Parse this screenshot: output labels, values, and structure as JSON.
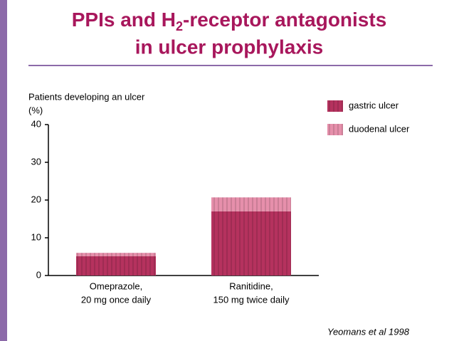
{
  "chart_data": {
    "type": "bar",
    "stacked": true,
    "title": [
      "PPIs and H",
      "2",
      "-receptor antagonists",
      "in ulcer prophylaxis"
    ],
    "ylabel": [
      "Patients developing an ulcer",
      "(%)"
    ],
    "categories": [
      [
        "Omeprazole,",
        "20 mg once daily"
      ],
      [
        "Ranitidine,",
        "150 mg twice daily"
      ]
    ],
    "series": [
      {
        "name": "gastric ulcer",
        "color": "#b5325e",
        "values": [
          5.1,
          17.0
        ]
      },
      {
        "name": "duodenal ulcer",
        "color": "#e68fab",
        "values": [
          0.9,
          3.7
        ]
      }
    ],
    "ylim": [
      0,
      40
    ],
    "yticks": [
      0,
      10,
      20,
      30,
      40
    ],
    "legend": "right",
    "source": "Yeomans et al 1998"
  }
}
